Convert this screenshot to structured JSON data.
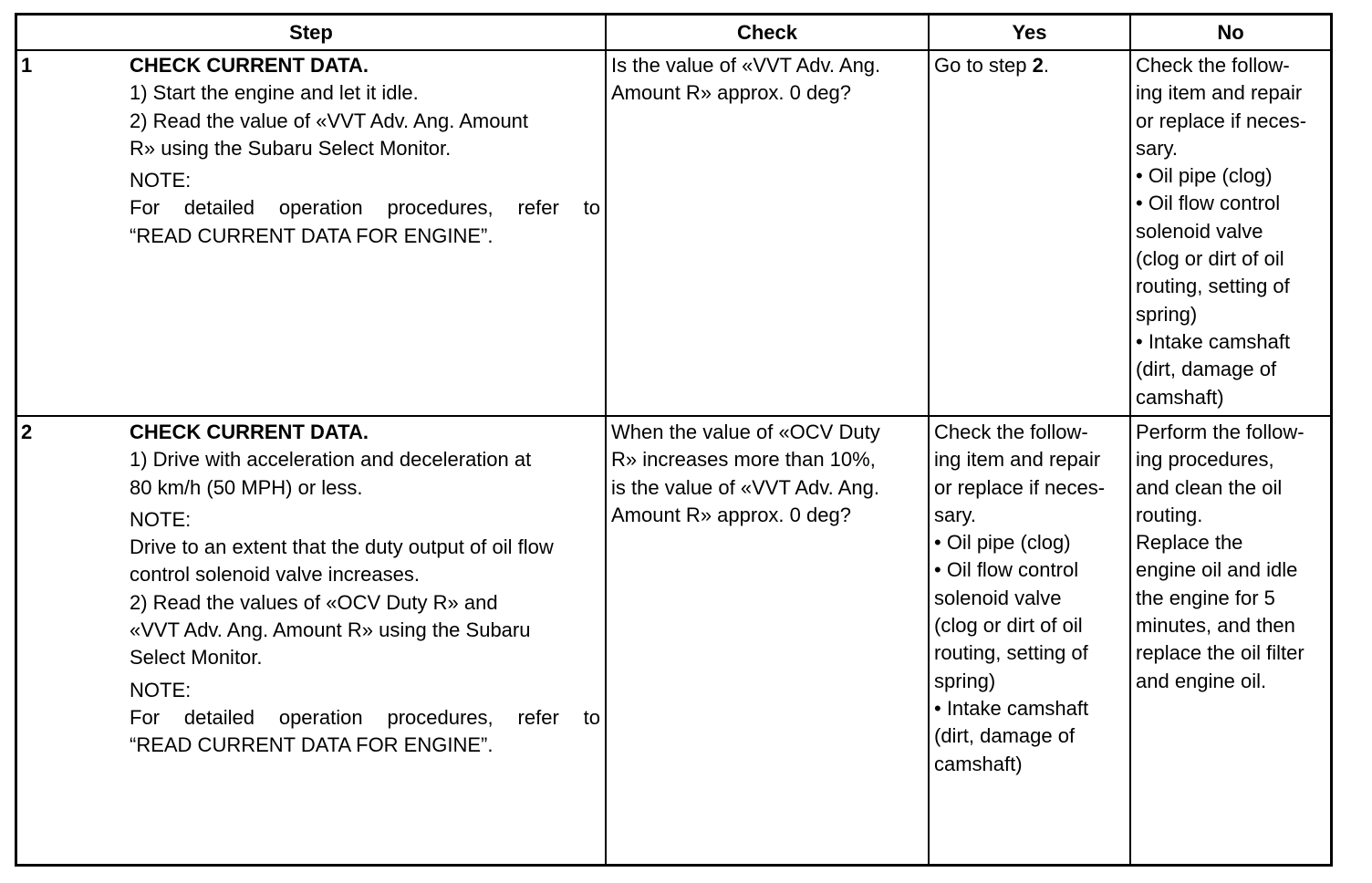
{
  "headers": [
    "Step",
    "Check",
    "Yes",
    "No"
  ],
  "rows": [
    {
      "num": "1",
      "step": {
        "title": "CHECK CURRENT DATA.",
        "lines": [
          "1)  Start the engine and let it idle.",
          "2)  Read the value of «VVT Adv. Ang. Amount",
          "R» using the Subaru Select Monitor.",
          "NOTE:",
          "For detailed operation procedures, refer to",
          "“READ CURRENT DATA FOR ENGINE”."
        ]
      },
      "check": [
        "Is the value of «VVT Adv. Ang.",
        "Amount R» approx. 0 deg?"
      ],
      "yes": {
        "prefix": "Go to step ",
        "bold": "2",
        "suffix": "."
      },
      "no": [
        "Check the follow-",
        "ing item and repair",
        "or replace if neces-",
        "sary.",
        "•  Oil pipe (clog)",
        "•  Oil flow control",
        "solenoid valve",
        "(clog or dirt of oil",
        "routing, setting of",
        "spring)",
        "•  Intake camshaft",
        "(dirt, damage of",
        "camshaft)"
      ]
    },
    {
      "num": "2",
      "step": {
        "title": "CHECK CURRENT DATA.",
        "lines": [
          "1)  Drive with acceleration and deceleration at",
          "80 km/h (50 MPH) or less.",
          "NOTE:",
          "Drive to an extent that the duty output of oil flow",
          "control solenoid valve increases.",
          "2)  Read the values of «OCV Duty R» and",
          "«VVT Adv. Ang. Amount R» using the Subaru",
          "Select Monitor.",
          "NOTE:",
          "For detailed operation procedures, refer to",
          "“READ CURRENT DATA FOR ENGINE”."
        ]
      },
      "check": [
        "When the value of «OCV Duty",
        "R» increases more than 10%,",
        "is the value of «VVT Adv. Ang.",
        "Amount R» approx. 0 deg?"
      ],
      "yes": [
        "Check the follow-",
        "ing item and repair",
        "or replace if neces-",
        "sary.",
        "•  Oil pipe (clog)",
        "•  Oil flow control",
        "solenoid valve",
        "(clog or dirt of oil",
        "routing, setting of",
        "spring)",
        "•  Intake camshaft",
        "(dirt, damage of",
        "camshaft)"
      ],
      "no": [
        "Perform the follow-",
        "ing procedures,",
        "and clean the oil",
        "routing.",
        "Replace the",
        "engine oil and idle",
        "the engine for 5",
        "minutes, and then",
        "replace the oil filter",
        "and engine oil."
      ]
    }
  ]
}
